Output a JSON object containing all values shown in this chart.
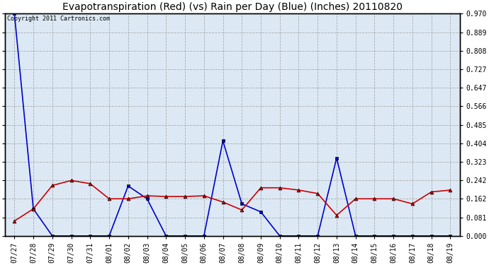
{
  "title": "Evapotranspiration (Red) (vs) Rain per Day (Blue) (Inches) 20110820",
  "copyright_text": "Copyright 2011 Cartronics.com",
  "x_labels": [
    "07/27",
    "07/28",
    "07/29",
    "07/30",
    "07/31",
    "08/01",
    "08/02",
    "08/03",
    "08/04",
    "08/05",
    "08/06",
    "08/07",
    "08/08",
    "08/09",
    "08/10",
    "08/11",
    "08/12",
    "08/13",
    "08/14",
    "08/15",
    "08/16",
    "08/17",
    "08/18",
    "08/19"
  ],
  "red_values": [
    0.065,
    0.118,
    0.22,
    0.242,
    0.228,
    0.162,
    0.162,
    0.175,
    0.172,
    0.172,
    0.175,
    0.148,
    0.113,
    0.21,
    0.21,
    0.2,
    0.185,
    0.09,
    0.162,
    0.162,
    0.162,
    0.14,
    0.192,
    0.2
  ],
  "blue_values": [
    0.97,
    0.118,
    0.0,
    0.0,
    0.0,
    0.0,
    0.218,
    0.162,
    0.0,
    0.0,
    0.0,
    0.415,
    0.14,
    0.105,
    0.0,
    0.0,
    0.0,
    0.34,
    0.0,
    0.0,
    0.0,
    0.0,
    0.0,
    0.0
  ],
  "red_color": "#cc0000",
  "blue_color": "#0000cc",
  "bg_color": "#ffffff",
  "plot_bg_color": "#dce9f5",
  "grid_color": "#aaaaaa",
  "y_ticks": [
    0.0,
    0.081,
    0.162,
    0.242,
    0.323,
    0.404,
    0.485,
    0.566,
    0.647,
    0.727,
    0.808,
    0.889,
    0.97
  ],
  "ylim_min": 0.0,
  "ylim_max": 0.97,
  "title_fontsize": 10,
  "tick_fontsize": 7,
  "copyright_fontsize": 6
}
